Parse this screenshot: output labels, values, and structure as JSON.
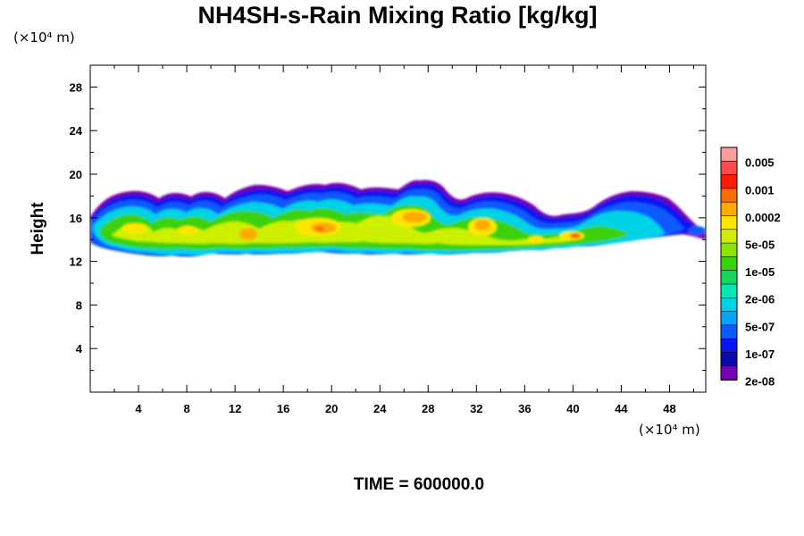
{
  "chart_data": {
    "type": "heatmap",
    "title": "NH4SH-s-Rain Mixing Ratio [kg/kg]",
    "ylabel": "Height",
    "xlabel": "",
    "x_unit": "(×10⁴ m)",
    "y_unit": "(×10⁴ m)",
    "footer": "TIME = 600000.0",
    "xlim": [
      0,
      51
    ],
    "ylim": [
      0,
      30
    ],
    "x_ticks": [
      4,
      8,
      12,
      16,
      20,
      24,
      28,
      32,
      36,
      40,
      44,
      48
    ],
    "y_ticks": [
      4,
      8,
      12,
      16,
      20,
      24,
      28
    ],
    "colorbar": {
      "labels": [
        "0.005",
        "0.001",
        "0.0002",
        "5e-05",
        "1e-05",
        "2e-06",
        "5e-07",
        "1e-07",
        "2e-08"
      ],
      "colors": [
        "#ff9a9a",
        "#ff4a4a",
        "#ff1a00",
        "#ff6a00",
        "#ffaa00",
        "#ffe600",
        "#ccf000",
        "#88e600",
        "#3ad20a",
        "#14d65a",
        "#00e8b4",
        "#00d2e6",
        "#0aa0ff",
        "#0a5aff",
        "#0a14f0",
        "#0a0aaa",
        "#7800b4"
      ]
    },
    "cloud_band": {
      "base_height": 13,
      "top_height_profile": {
        "x": [
          0,
          2,
          4,
          6,
          8,
          10,
          12,
          14,
          16,
          18,
          20,
          22,
          24,
          26,
          27,
          28,
          30,
          32,
          34,
          36,
          38,
          40,
          42,
          44,
          46,
          48,
          50,
          51
        ],
        "top": [
          16.5,
          17.5,
          18.0,
          17.2,
          17.5,
          18.0,
          17.3,
          18.8,
          18.5,
          18.2,
          17.8,
          18.0,
          18.3,
          18.6,
          19.5,
          18.8,
          17.5,
          17.8,
          17.3,
          16.5,
          16.2,
          16.0,
          17.0,
          17.5,
          18.0,
          17.8,
          15.5,
          15.0
        ]
      }
    }
  }
}
